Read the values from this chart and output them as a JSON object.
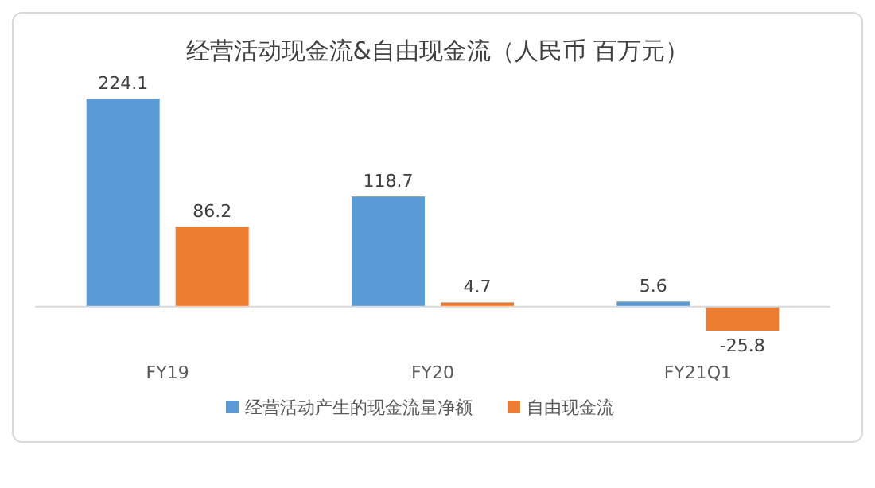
{
  "chart_data": {
    "type": "bar",
    "title": "经营活动现金流&自由现金流（人民币 百万元）",
    "categories": [
      "FY19",
      "FY20",
      "FY21Q1"
    ],
    "series": [
      {
        "name": "经营活动产生的现金流量净额",
        "color": "#5b9bd5",
        "values": [
          224.1,
          118.7,
          5.6
        ]
      },
      {
        "name": "自由现金流",
        "color": "#ed7d31",
        "values": [
          86.2,
          4.7,
          -25.8
        ]
      }
    ],
    "data_labels": true,
    "legend": "bottom"
  }
}
